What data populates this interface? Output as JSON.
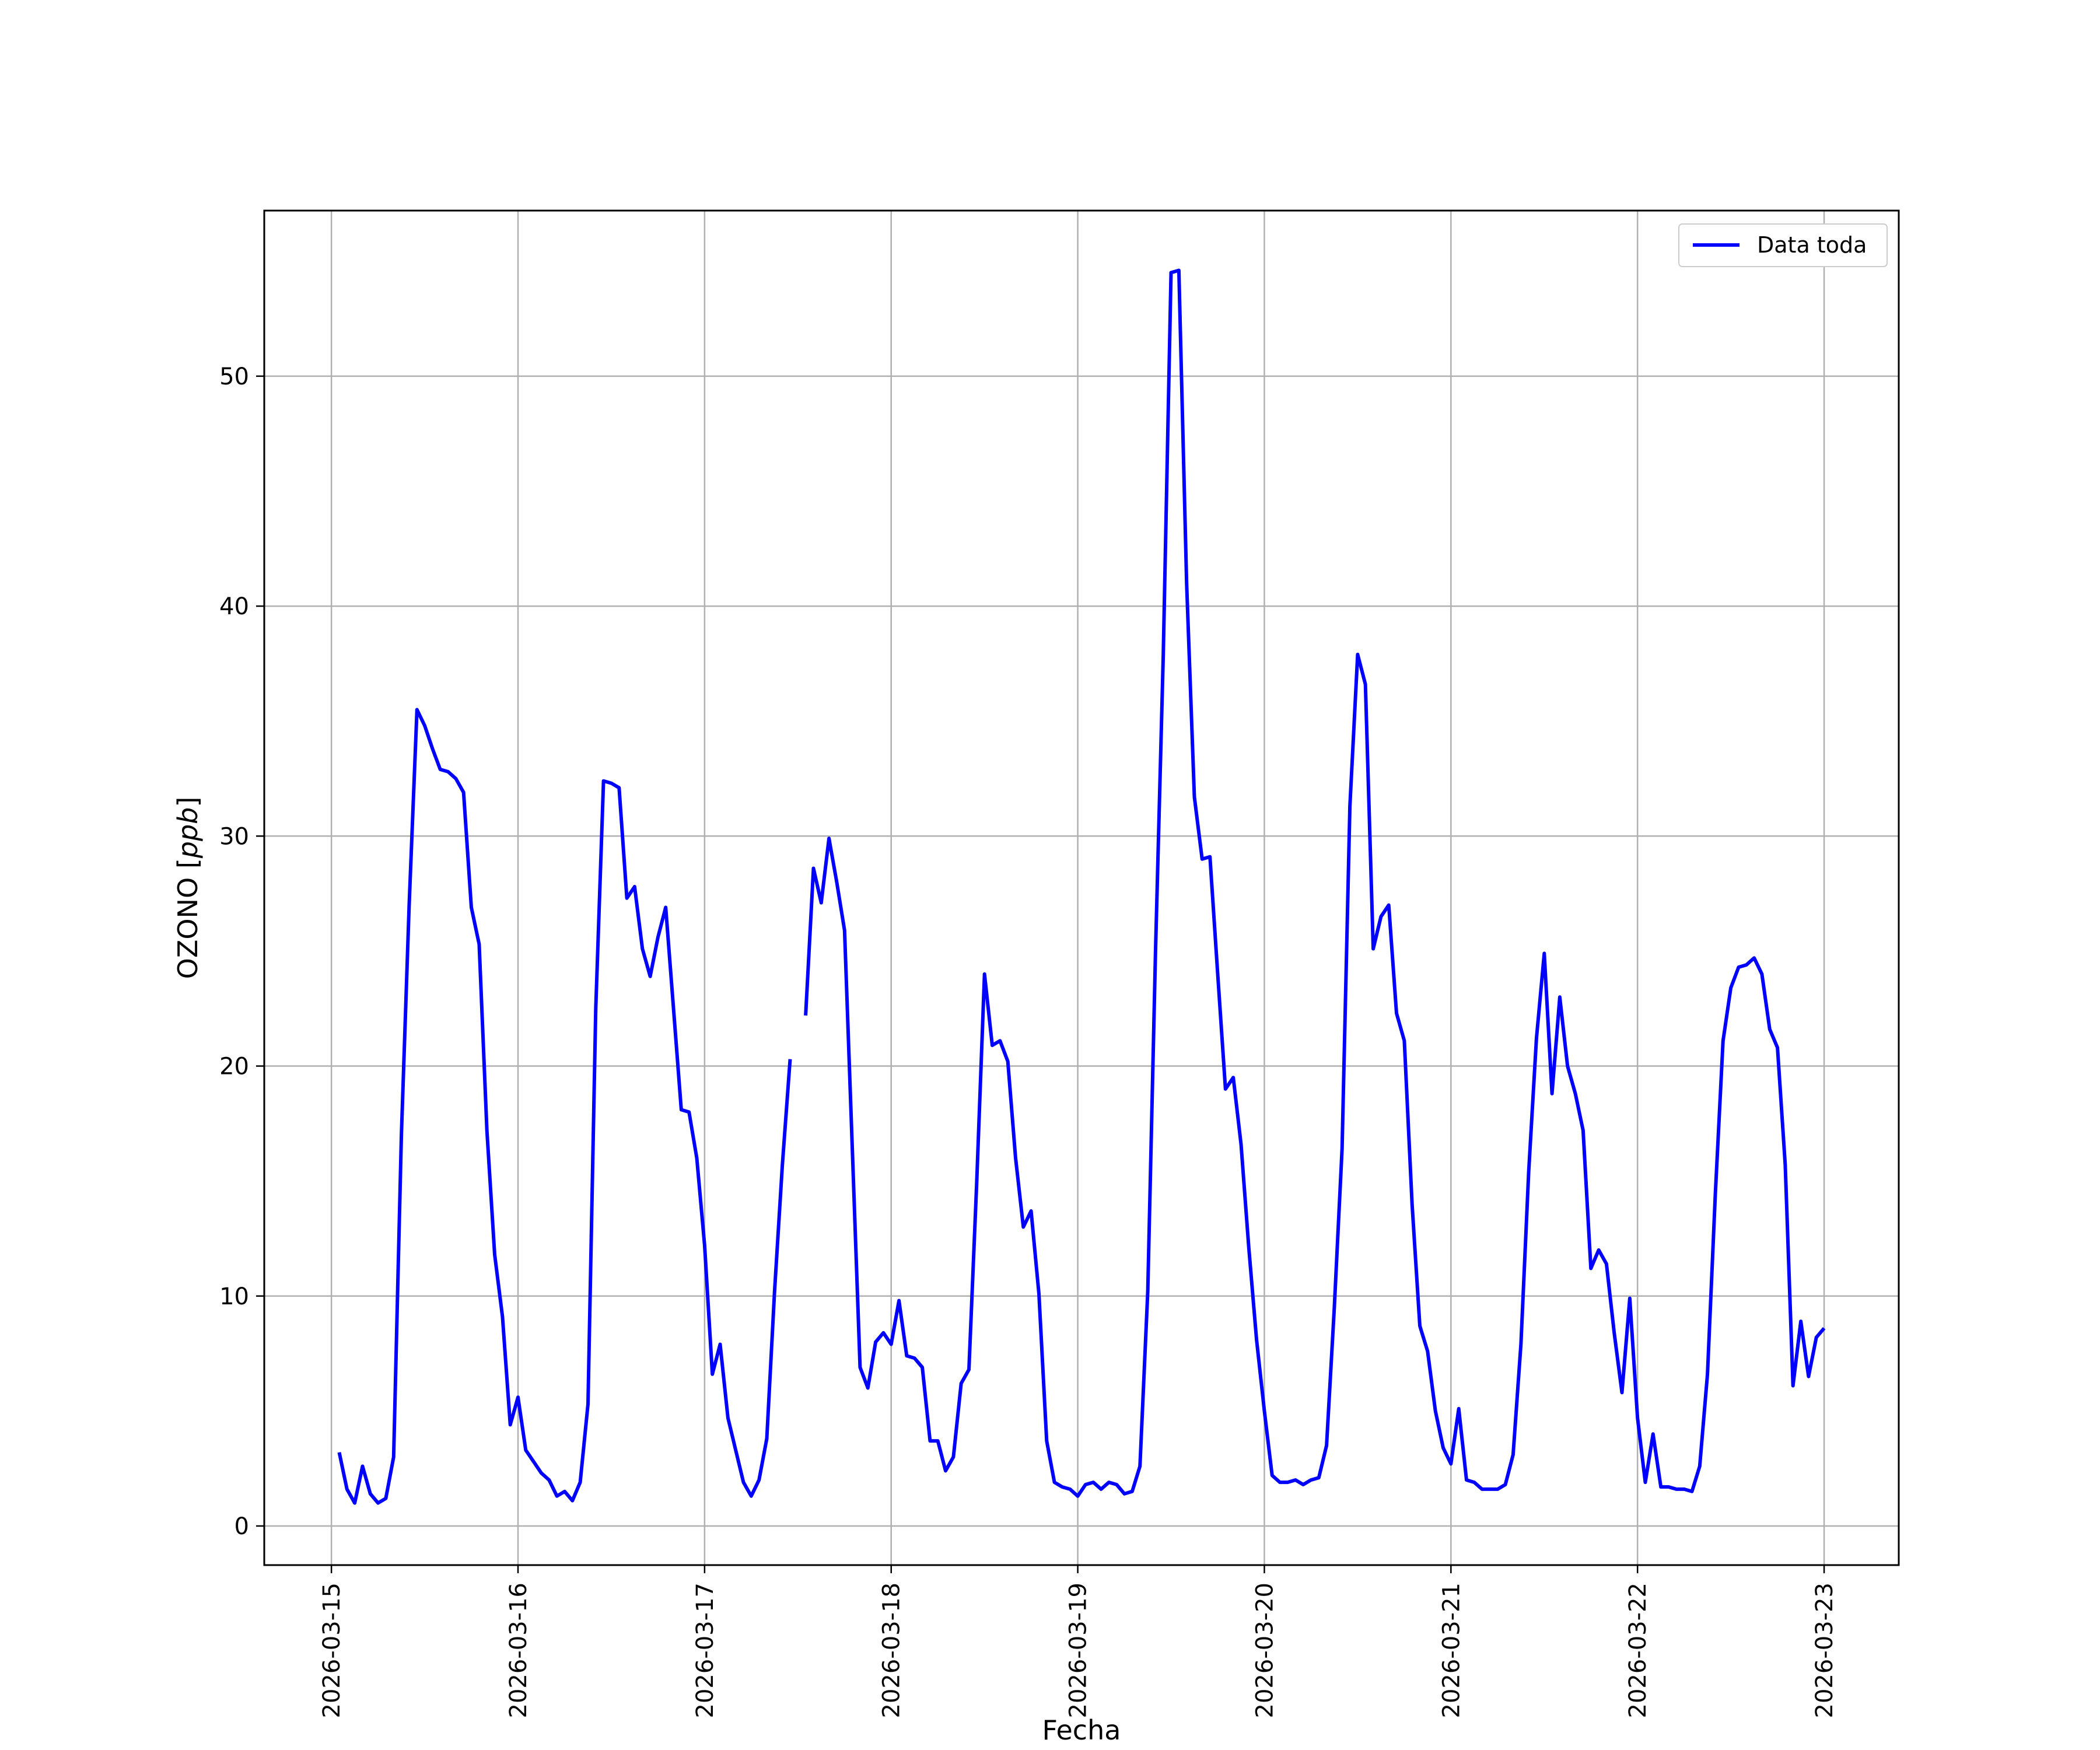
{
  "chart_data": {
    "type": "line",
    "title": "",
    "xlabel": "Fecha",
    "ylabel_main": "OZONO [",
    "ylabel_unit": "ppb",
    "ylabel_close": "]",
    "x_tick_labels": [
      "2026-03-15",
      "2026-03-16",
      "2026-03-17",
      "2026-03-18",
      "2026-03-19",
      "2026-03-20",
      "2026-03-21",
      "2026-03-22",
      "2026-03-23"
    ],
    "y_ticks": [
      0,
      10,
      20,
      30,
      40,
      50
    ],
    "xlim_days": [
      -0.36,
      8.4
    ],
    "ylim": [
      -1.7,
      57.2
    ],
    "grid": true,
    "legend_position": "top-right",
    "series": [
      {
        "name": "Data toda",
        "color": "#0000ff",
        "segments": [
          {
            "start_date": "2026-03-15 01:00",
            "step_hours": 1,
            "values": [
              3.2,
              1.6,
              1.0,
              2.6,
              1.4,
              1.0,
              1.2,
              3.0,
              17.0,
              27.0,
              35.5,
              34.8,
              33.8,
              32.9,
              32.8,
              32.5,
              31.9,
              26.9,
              25.3,
              17.2,
              11.8,
              9.1,
              4.4,
              5.6,
              3.3,
              2.8,
              2.3,
              2.0,
              1.3,
              1.5,
              1.1,
              1.9,
              5.3,
              22.5,
              32.4,
              32.3,
              32.1,
              27.3,
              27.8,
              25.1,
              23.9,
              25.6,
              26.9,
              22.5,
              18.1,
              18.0,
              16.0,
              12.2,
              6.6,
              7.9,
              4.7,
              3.3,
              1.9,
              1.3,
              2.0,
              3.8,
              10.2,
              15.7,
              20.3
            ]
          },
          {
            "start_date": "2026-03-17 13:00",
            "step_hours": 1,
            "values": [
              22.2,
              28.6,
              27.1,
              29.9,
              28.0,
              25.9,
              16.4,
              6.9,
              6.0,
              8.0,
              8.4,
              7.9,
              9.8,
              7.4,
              7.3,
              6.9,
              3.7,
              3.7,
              2.4,
              3.0,
              6.2,
              6.8,
              14.9,
              24.0,
              20.9,
              21.1,
              20.2,
              16.0,
              13.0,
              13.7,
              10.1,
              3.7,
              1.9,
              1.7,
              1.6,
              1.3,
              1.8,
              1.9,
              1.6,
              1.9,
              1.8,
              1.4,
              1.5,
              2.6,
              10.2,
              25.0,
              37.9,
              54.5,
              54.6,
              41.0,
              31.7,
              29.0,
              29.1,
              24.0,
              19.0,
              19.5,
              16.6,
              12.1,
              8.1,
              5.0,
              2.2,
              1.9,
              1.9,
              2.0,
              1.8,
              2.0,
              2.1,
              3.5,
              9.5,
              16.4,
              31.3,
              37.9,
              36.6,
              25.1,
              26.5,
              27.0,
              22.3,
              21.1,
              14.0,
              8.7,
              7.6,
              5.0,
              3.4,
              2.7,
              5.1,
              2.0,
              1.9,
              1.6,
              1.6,
              1.6,
              1.8,
              3.1,
              7.9,
              15.4,
              21.2,
              24.9,
              18.8,
              23.0,
              20.0,
              18.8,
              17.2,
              11.2,
              12.0,
              11.4,
              8.4,
              5.8,
              9.9,
              4.7,
              1.9,
              4.0,
              1.7,
              1.7,
              1.6,
              1.6,
              1.5,
              2.6,
              6.6,
              14.4,
              21.1,
              23.4,
              24.3,
              24.4,
              24.7,
              24.0,
              21.6,
              20.8,
              15.7,
              6.1,
              8.9,
              6.5,
              8.2,
              8.6
            ]
          }
        ]
      }
    ]
  }
}
